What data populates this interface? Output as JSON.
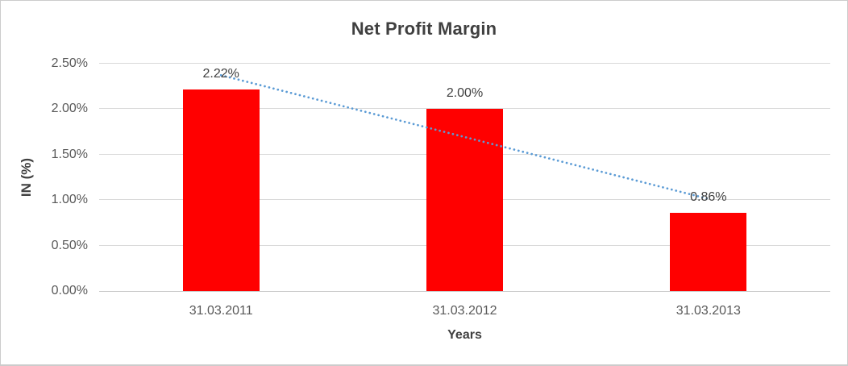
{
  "chart_data": {
    "type": "bar",
    "title": "Net Profit Margin",
    "xlabel": "Years",
    "ylabel": "IN (%)",
    "categories": [
      "31.03.2011",
      "31.03.2012",
      "31.03.2013"
    ],
    "values": [
      2.22,
      2.0,
      0.86
    ],
    "data_labels": [
      "2.22%",
      "2.00%",
      "0.86%"
    ],
    "y_tick_labels": [
      "0.00%",
      "0.50%",
      "1.00%",
      "1.50%",
      "2.00%",
      "2.50%"
    ],
    "ylim": [
      0,
      2.5
    ],
    "grid": true,
    "legend": "none",
    "bar_color": "#FF0000",
    "trendline": {
      "type": "linear",
      "style": "dotted",
      "color": "#5B9BD5"
    },
    "colors": {
      "title_text": "#404040",
      "axis_title_text": "#404040",
      "tick_text": "#595959",
      "data_label_text": "#404040",
      "gridline": "#D9D9D9",
      "axis_line": "#C9C9C9",
      "frame_border": "#CCCCCC",
      "background": "#FFFFFF"
    }
  }
}
